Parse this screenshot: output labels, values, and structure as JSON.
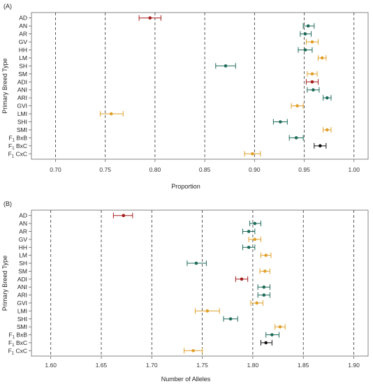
{
  "colors": {
    "red": "#a61c1c",
    "green": "#1e6b5a",
    "orange": "#e0a02a",
    "black": "#111111"
  },
  "chart_data": [
    {
      "type": "scatter",
      "panel_label": "(A)",
      "xlabel": "Proportion",
      "ylabel": "Primary Breed Type",
      "xlim": [
        0.68,
        1.01
      ],
      "xticks": [
        "0.70",
        "0.75",
        "0.80",
        "0.85",
        "0.90",
        "0.95",
        "1.00"
      ],
      "xtick_values": [
        0.7,
        0.75,
        0.8,
        0.85,
        0.9,
        0.95,
        1.0
      ],
      "grid": "vertical-dashed",
      "categories": [
        "AD",
        "AN",
        "AR",
        "GV",
        "HH",
        "LM",
        "SH",
        "SM",
        "ADI",
        "ANI",
        "ARI",
        "GVI",
        "LMI",
        "SHI",
        "SMI",
        "F1 BxB",
        "F1 BxC",
        "F1 CxC"
      ],
      "points": [
        {
          "label": "AD",
          "value": 0.795,
          "lo": 0.784,
          "hi": 0.806,
          "color": "red"
        },
        {
          "label": "AN",
          "value": 0.954,
          "lo": 0.949,
          "hi": 0.96,
          "color": "green"
        },
        {
          "label": "AR",
          "value": 0.951,
          "lo": 0.946,
          "hi": 0.957,
          "color": "green"
        },
        {
          "label": "GV",
          "value": 0.958,
          "lo": 0.952,
          "hi": 0.964,
          "color": "orange"
        },
        {
          "label": "HH",
          "value": 0.951,
          "lo": 0.944,
          "hi": 0.958,
          "color": "green"
        },
        {
          "label": "LM",
          "value": 0.968,
          "lo": 0.964,
          "hi": 0.972,
          "color": "orange"
        },
        {
          "label": "SH",
          "value": 0.871,
          "lo": 0.861,
          "hi": 0.881,
          "color": "green"
        },
        {
          "label": "SM",
          "value": 0.958,
          "lo": 0.953,
          "hi": 0.963,
          "color": "orange"
        },
        {
          "label": "ADI",
          "value": 0.958,
          "lo": 0.952,
          "hi": 0.964,
          "color": "red"
        },
        {
          "label": "ANI",
          "value": 0.959,
          "lo": 0.953,
          "hi": 0.965,
          "color": "green"
        },
        {
          "label": "ARI",
          "value": 0.973,
          "lo": 0.969,
          "hi": 0.977,
          "color": "green"
        },
        {
          "label": "GVI",
          "value": 0.943,
          "lo": 0.937,
          "hi": 0.949,
          "color": "orange"
        },
        {
          "label": "LMI",
          "value": 0.756,
          "lo": 0.745,
          "hi": 0.768,
          "color": "orange"
        },
        {
          "label": "SHI",
          "value": 0.926,
          "lo": 0.919,
          "hi": 0.933,
          "color": "green"
        },
        {
          "label": "SMI",
          "value": 0.973,
          "lo": 0.969,
          "hi": 0.977,
          "color": "orange"
        },
        {
          "label": "F1 BxB",
          "value": 0.942,
          "lo": 0.935,
          "hi": 0.949,
          "color": "green"
        },
        {
          "label": "F1 BxC",
          "value": 0.966,
          "lo": 0.96,
          "hi": 0.972,
          "color": "black"
        },
        {
          "label": "F1 CxC",
          "value": 0.898,
          "lo": 0.89,
          "hi": 0.906,
          "color": "orange"
        }
      ]
    },
    {
      "type": "scatter",
      "panel_label": "(B)",
      "xlabel": "Number of Alleles",
      "ylabel": "Primary Breed Type",
      "xlim": [
        1.585,
        1.91
      ],
      "xticks": [
        "1.60",
        "1.65",
        "1.70",
        "1.75",
        "1.80",
        "1.85",
        "1.90"
      ],
      "xtick_values": [
        1.6,
        1.65,
        1.7,
        1.75,
        1.8,
        1.85,
        1.9
      ],
      "grid": "vertical-dashed",
      "categories": [
        "AD",
        "AN",
        "AR",
        "GV",
        "HH",
        "LM",
        "SH",
        "SM",
        "ADI",
        "ANI",
        "ARI",
        "GVI",
        "LMI",
        "SHI",
        "SMI",
        "F1 BxB",
        "F1 BxC",
        "F1 CxC"
      ],
      "points": [
        {
          "label": "AD",
          "value": 1.672,
          "lo": 1.662,
          "hi": 1.681,
          "color": "red"
        },
        {
          "label": "AN",
          "value": 1.802,
          "lo": 1.797,
          "hi": 1.808,
          "color": "green"
        },
        {
          "label": "AR",
          "value": 1.796,
          "lo": 1.79,
          "hi": 1.802,
          "color": "green"
        },
        {
          "label": "GV",
          "value": 1.802,
          "lo": 1.796,
          "hi": 1.808,
          "color": "orange"
        },
        {
          "label": "HH",
          "value": 1.796,
          "lo": 1.79,
          "hi": 1.802,
          "color": "green"
        },
        {
          "label": "LM",
          "value": 1.813,
          "lo": 1.808,
          "hi": 1.818,
          "color": "orange"
        },
        {
          "label": "SH",
          "value": 1.744,
          "lo": 1.735,
          "hi": 1.754,
          "color": "green"
        },
        {
          "label": "SM",
          "value": 1.812,
          "lo": 1.807,
          "hi": 1.817,
          "color": "orange"
        },
        {
          "label": "ADI",
          "value": 1.789,
          "lo": 1.783,
          "hi": 1.795,
          "color": "red"
        },
        {
          "label": "ANI",
          "value": 1.811,
          "lo": 1.805,
          "hi": 1.817,
          "color": "green"
        },
        {
          "label": "ARI",
          "value": 1.811,
          "lo": 1.805,
          "hi": 1.817,
          "color": "green"
        },
        {
          "label": "GVI",
          "value": 1.804,
          "lo": 1.798,
          "hi": 1.81,
          "color": "orange"
        },
        {
          "label": "LMI",
          "value": 1.755,
          "lo": 1.743,
          "hi": 1.767,
          "color": "orange"
        },
        {
          "label": "SHI",
          "value": 1.778,
          "lo": 1.771,
          "hi": 1.785,
          "color": "green"
        },
        {
          "label": "SMI",
          "value": 1.827,
          "lo": 1.822,
          "hi": 1.832,
          "color": "orange"
        },
        {
          "label": "F1 BxB",
          "value": 1.819,
          "lo": 1.813,
          "hi": 1.826,
          "color": "green"
        },
        {
          "label": "F1 BxC",
          "value": 1.813,
          "lo": 1.808,
          "hi": 1.819,
          "color": "black"
        },
        {
          "label": "F1 CxC",
          "value": 1.741,
          "lo": 1.732,
          "hi": 1.75,
          "color": "orange"
        }
      ]
    }
  ]
}
